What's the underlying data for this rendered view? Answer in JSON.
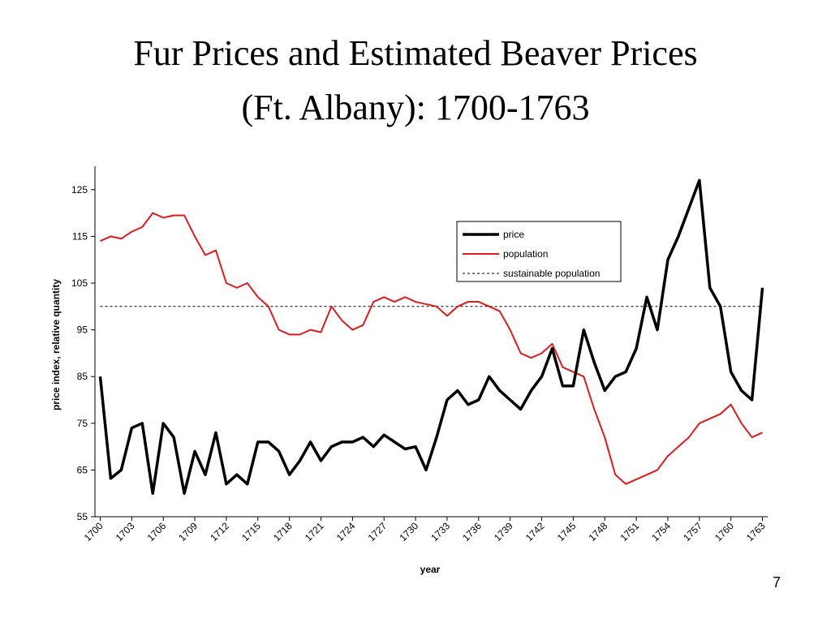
{
  "chart_data": {
    "type": "line",
    "title": [
      "Fur Prices and Estimated Beaver Prices",
      "(Ft. Albany):  1700-1763"
    ],
    "page_number": "7",
    "xlabel": "year",
    "ylabel": "price index, relative quantity",
    "x": [
      1700,
      1701,
      1702,
      1703,
      1704,
      1705,
      1706,
      1707,
      1708,
      1709,
      1710,
      1711,
      1712,
      1713,
      1714,
      1715,
      1716,
      1717,
      1718,
      1719,
      1720,
      1721,
      1722,
      1723,
      1724,
      1725,
      1726,
      1727,
      1728,
      1729,
      1730,
      1731,
      1732,
      1733,
      1734,
      1735,
      1736,
      1737,
      1738,
      1739,
      1740,
      1741,
      1742,
      1743,
      1744,
      1745,
      1746,
      1747,
      1748,
      1749,
      1750,
      1751,
      1752,
      1753,
      1754,
      1755,
      1756,
      1757,
      1758,
      1759,
      1760,
      1761,
      1762,
      1763
    ],
    "series": [
      {
        "name": "price",
        "color": "#000000",
        "width": 3.5,
        "dash": false,
        "values": [
          85,
          63.2,
          65,
          74,
          75,
          60,
          75,
          72,
          60,
          69,
          64,
          73,
          62,
          64,
          62,
          71,
          71,
          69,
          64,
          67,
          71,
          67,
          70,
          71,
          71,
          72,
          70,
          72.5,
          71,
          69.5,
          70,
          65,
          72,
          80,
          82,
          79,
          80,
          85,
          82,
          80,
          78,
          82,
          85,
          91,
          83,
          83,
          95,
          88,
          82,
          85,
          86,
          91,
          102,
          95,
          110,
          115,
          121,
          127,
          104,
          100,
          86,
          82,
          80,
          104
        ]
      },
      {
        "name": "population",
        "color": "#e31a1c",
        "width": 2,
        "dash": false,
        "values": [
          114,
          115,
          114.5,
          116,
          117,
          120,
          119,
          119.5,
          119.5,
          115,
          111,
          112,
          105,
          104,
          105,
          102,
          100,
          95,
          94,
          94,
          95,
          94.5,
          100,
          97,
          95,
          96,
          101,
          102,
          101,
          102,
          101,
          100.5,
          100,
          98,
          100,
          101,
          101,
          100,
          99,
          95,
          90,
          89,
          90,
          92,
          87,
          86,
          85,
          78,
          72,
          64,
          62,
          63,
          64,
          65,
          68,
          70,
          72,
          75,
          76,
          77,
          79,
          75,
          72,
          73
        ]
      },
      {
        "name": "sustainable population",
        "color": "#000000",
        "width": 1,
        "dash": true,
        "values": [
          100,
          100,
          100,
          100,
          100,
          100,
          100,
          100,
          100,
          100,
          100,
          100,
          100,
          100,
          100,
          100,
          100,
          100,
          100,
          100,
          100,
          100,
          100,
          100,
          100,
          100,
          100,
          100,
          100,
          100,
          100,
          100,
          100,
          100,
          100,
          100,
          100,
          100,
          100,
          100,
          100,
          100,
          100,
          100,
          100,
          100,
          100,
          100,
          100,
          100,
          100,
          100,
          100,
          100,
          100,
          100,
          100,
          100,
          100,
          100,
          100,
          100,
          100,
          100
        ]
      }
    ],
    "xlim": [
      1699.5,
      1763.5
    ],
    "xticks": [
      1700,
      1703,
      1706,
      1709,
      1712,
      1715,
      1718,
      1721,
      1724,
      1727,
      1730,
      1733,
      1736,
      1739,
      1742,
      1745,
      1748,
      1751,
      1754,
      1757,
      1760,
      1763
    ],
    "ylim": [
      55,
      130
    ],
    "yticks": [
      55,
      65,
      75,
      85,
      95,
      105,
      115,
      125
    ],
    "grid": false
  }
}
